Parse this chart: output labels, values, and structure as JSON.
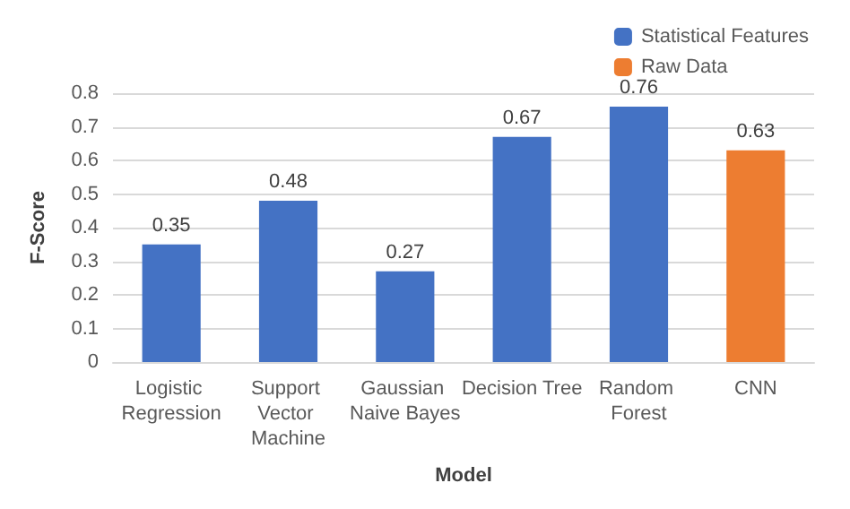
{
  "chart_data": {
    "type": "bar",
    "xlabel": "Model",
    "ylabel": "F-Score",
    "categories": [
      "Logistic Regression",
      "Support Vector Machine",
      "Gaussian Naive Bayes",
      "Decision Tree",
      "Random Forest",
      "CNN"
    ],
    "series": [
      {
        "name": "Statistical Features",
        "color": "#4472c4",
        "values": [
          0.35,
          0.48,
          0.27,
          0.67,
          0.76,
          null
        ]
      },
      {
        "name": "Raw Data",
        "color": "#ed7d31",
        "values": [
          null,
          null,
          null,
          null,
          null,
          0.63
        ]
      }
    ],
    "ylim": [
      0,
      0.8
    ],
    "yticks": [
      0,
      0.1,
      0.2,
      0.3,
      0.4,
      0.5,
      0.6,
      0.7,
      0.8
    ],
    "grid": "y",
    "legend": "top right",
    "data_labels": true
  }
}
